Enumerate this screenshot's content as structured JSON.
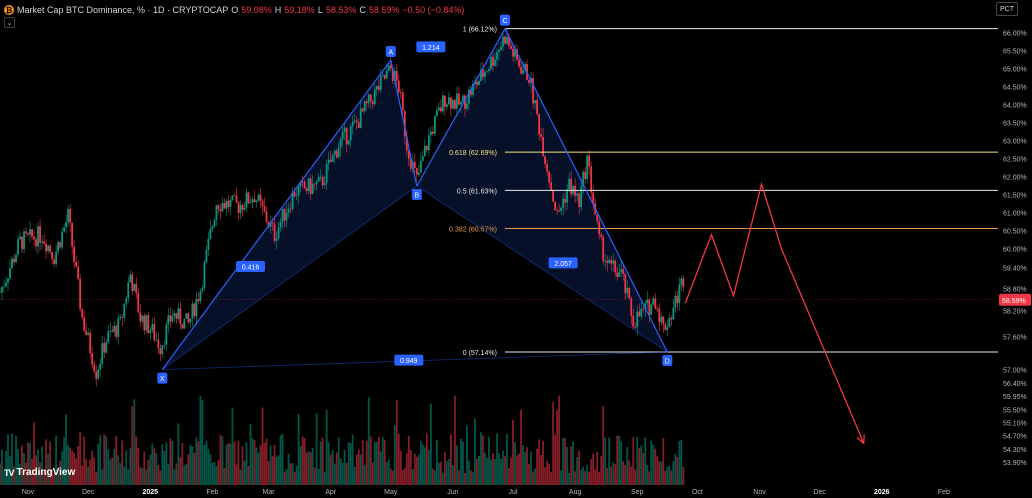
{
  "header": {
    "title": "Market Cap BTC Dominance, % · 1D · CRYPTOCAP",
    "coin_icon": "bitcoin-icon",
    "o_label": "O",
    "o_value": "59.08%",
    "h_label": "H",
    "h_value": "59.18%",
    "l_label": "L",
    "l_value": "58.53%",
    "c_label": "C",
    "c_value": "58.59%",
    "change": "−0.50 (−0.84%)"
  },
  "scale_button": "PCT",
  "logo": {
    "mark": "TV",
    "text": "TradingView"
  },
  "colors": {
    "bg": "#000000",
    "up": "#089981",
    "down": "#f23645",
    "pattern": "#2962ff",
    "fib_yellow": "#f6e27f",
    "fib_orange": "#e89a4a",
    "projection": "#f23645"
  },
  "chart_data": {
    "type": "candlestick",
    "x_start": "2024-10-18",
    "x_end": "2026-02-28",
    "x_ticks": [
      "Nov",
      "Dec",
      "2025",
      "Feb",
      "Mar",
      "Apr",
      "May",
      "Jun",
      "Jul",
      "Aug",
      "Sep",
      "Oct",
      "Nov",
      "Dec",
      "2026",
      "Feb"
    ],
    "y_ticks": [
      "66.00%",
      "65.50%",
      "65.00%",
      "64.50%",
      "64.00%",
      "63.50%",
      "63.00%",
      "62.50%",
      "62.00%",
      "61.50%",
      "61.00%",
      "60.50%",
      "60.00%",
      "59.40%",
      "58.80%",
      "58.20%",
      "57.60%",
      "57.00%",
      "56.40%",
      "55.95%",
      "55.50%",
      "55.10%",
      "54.70%",
      "54.30%",
      "53.90%"
    ],
    "last_price": "58.59%",
    "price_path": [
      [
        "2024-10-18",
        58.8
      ],
      [
        "2024-10-28",
        60.2
      ],
      [
        "2024-11-08",
        60.4
      ],
      [
        "2024-11-14",
        59.8
      ],
      [
        "2024-11-21",
        60.9
      ],
      [
        "2024-11-28",
        58.1
      ],
      [
        "2024-12-05",
        56.6
      ],
      [
        "2024-12-10",
        57.5
      ],
      [
        "2024-12-17",
        57.9
      ],
      [
        "2024-12-22",
        59.3
      ],
      [
        "2024-12-27",
        58.1
      ],
      [
        "2025-01-01",
        57.8
      ],
      [
        "2025-01-06",
        57.3
      ],
      [
        "2025-01-12",
        58.2
      ],
      [
        "2025-01-20",
        57.9
      ],
      [
        "2025-01-26",
        58.9
      ],
      [
        "2025-02-03",
        61.3
      ],
      [
        "2025-02-14",
        61.2
      ],
      [
        "2025-02-22",
        61.5
      ],
      [
        "2025-03-04",
        60.4
      ],
      [
        "2025-03-14",
        61.6
      ],
      [
        "2025-03-27",
        61.8
      ],
      [
        "2025-04-05",
        62.9
      ],
      [
        "2025-04-14",
        63.5
      ],
      [
        "2025-04-24",
        64.4
      ],
      [
        "2025-05-01",
        65.0
      ],
      [
        "2025-05-05",
        64.5
      ],
      [
        "2025-05-09",
        62.9
      ],
      [
        "2025-05-14",
        61.9
      ],
      [
        "2025-05-20",
        63.1
      ],
      [
        "2025-05-28",
        64.2
      ],
      [
        "2025-06-05",
        64.0
      ],
      [
        "2025-06-14",
        64.7
      ],
      [
        "2025-06-21",
        65.3
      ],
      [
        "2025-06-27",
        65.9
      ],
      [
        "2025-07-03",
        65.2
      ],
      [
        "2025-07-09",
        64.8
      ],
      [
        "2025-07-14",
        63.4
      ],
      [
        "2025-07-19",
        62.0
      ],
      [
        "2025-07-23",
        60.9
      ],
      [
        "2025-07-29",
        61.8
      ],
      [
        "2025-08-03",
        61.3
      ],
      [
        "2025-08-07",
        62.5
      ],
      [
        "2025-08-13",
        60.2
      ],
      [
        "2025-08-18",
        59.5
      ],
      [
        "2025-08-24",
        59.3
      ],
      [
        "2025-08-30",
        58.0
      ],
      [
        "2025-09-05",
        58.3
      ],
      [
        "2025-09-10",
        58.6
      ],
      [
        "2025-09-14",
        57.8
      ],
      [
        "2025-09-18",
        58.2
      ],
      [
        "2025-09-24",
        59.2
      ]
    ],
    "xabcd": {
      "points": [
        {
          "label": "X",
          "date": "2025-01-07",
          "value": 56.65
        },
        {
          "label": "A",
          "date": "2025-05-01",
          "value": 65.25
        },
        {
          "label": "B",
          "date": "2025-05-14",
          "value": 61.75
        },
        {
          "label": "C",
          "date": "2025-06-27",
          "value": 66.12
        },
        {
          "label": "D",
          "date": "2025-09-16",
          "value": 57.14
        }
      ],
      "ratios": [
        {
          "label": "1.214",
          "date": "2025-05-21",
          "value": 65.6
        },
        {
          "label": "0.416",
          "date": "2025-02-20",
          "value": 59.5
        },
        {
          "label": "2.057",
          "date": "2025-07-26",
          "value": 59.6
        },
        {
          "label": "0.949",
          "date": "2025-05-10",
          "value": 56.9
        }
      ]
    },
    "fib_levels": [
      {
        "label": "1 (66.12%)",
        "value": 66.12,
        "color": "#e9e9e9"
      },
      {
        "label": "0.618 (62.69%)",
        "value": 62.69,
        "color": "#f6e27f"
      },
      {
        "label": "0.5 (61.63%)",
        "value": 61.63,
        "color": "#e9e9e9"
      },
      {
        "label": "0.382 (60.57%)",
        "value": 60.57,
        "color": "#e89a4a"
      },
      {
        "label": "0 (57.14%)",
        "value": 57.14,
        "color": "#e9e9e9"
      }
    ],
    "projection": [
      [
        "2025-09-25",
        58.5
      ],
      [
        "2025-10-08",
        60.4
      ],
      [
        "2025-10-19",
        58.7
      ],
      [
        "2025-11-02",
        61.8
      ],
      [
        "2025-11-12",
        60.0
      ],
      [
        "2025-12-23",
        54.6
      ]
    ]
  }
}
